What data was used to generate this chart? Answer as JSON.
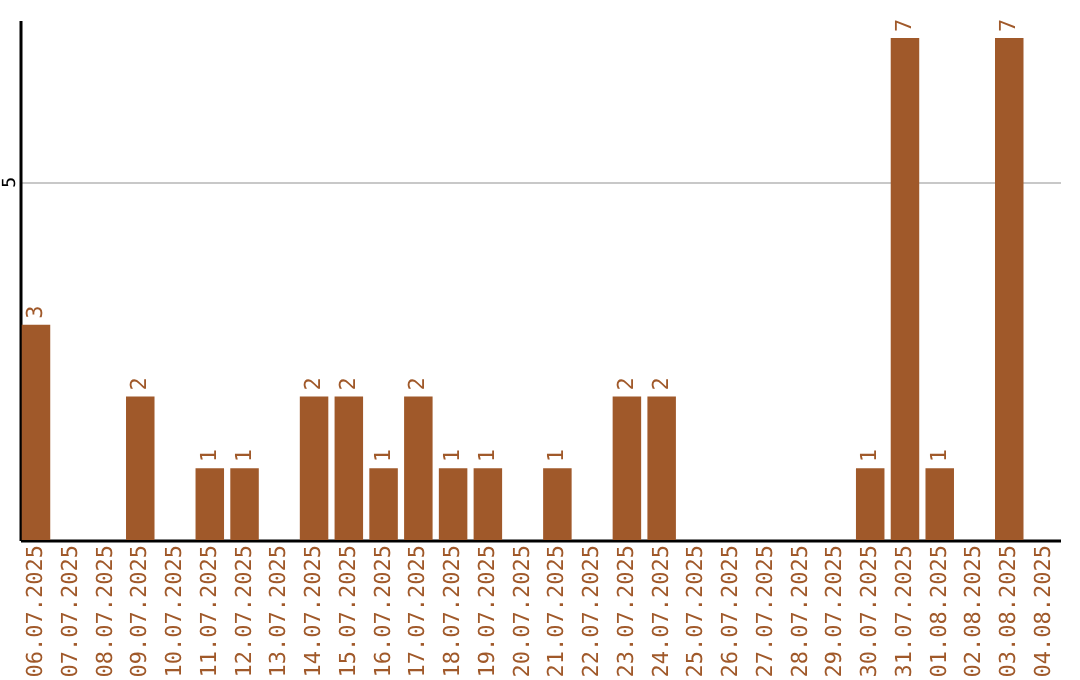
{
  "chart_data": {
    "type": "bar",
    "categories": [
      "06.07.2025",
      "07.07.2025",
      "08.07.2025",
      "09.07.2025",
      "10.07.2025",
      "11.07.2025",
      "12.07.2025",
      "13.07.2025",
      "14.07.2025",
      "15.07.2025",
      "16.07.2025",
      "17.07.2025",
      "18.07.2025",
      "19.07.2025",
      "20.07.2025",
      "21.07.2025",
      "22.07.2025",
      "23.07.2025",
      "24.07.2025",
      "25.07.2025",
      "26.07.2025",
      "27.07.2025",
      "28.07.2025",
      "29.07.2025",
      "30.07.2025",
      "31.07.2025",
      "01.08.2025",
      "02.08.2025",
      "03.08.2025",
      "04.08.2025"
    ],
    "values": [
      3,
      0,
      0,
      2,
      0,
      1,
      1,
      0,
      2,
      2,
      1,
      2,
      1,
      1,
      0,
      1,
      0,
      2,
      2,
      0,
      0,
      0,
      0,
      0,
      1,
      7,
      1,
      0,
      7,
      0
    ],
    "value_labels": [
      "3",
      null,
      null,
      "2",
      null,
      "1",
      "1",
      null,
      "2",
      "2",
      "1",
      "2",
      "1",
      "1",
      null,
      "1",
      null,
      "2",
      "2",
      null,
      null,
      null,
      null,
      null,
      "1",
      "7",
      "1",
      null,
      "7",
      null
    ],
    "color": "#a0592a",
    "ylim": [
      0,
      7.25
    ],
    "yticks": [
      5
    ],
    "grid": "y"
  }
}
